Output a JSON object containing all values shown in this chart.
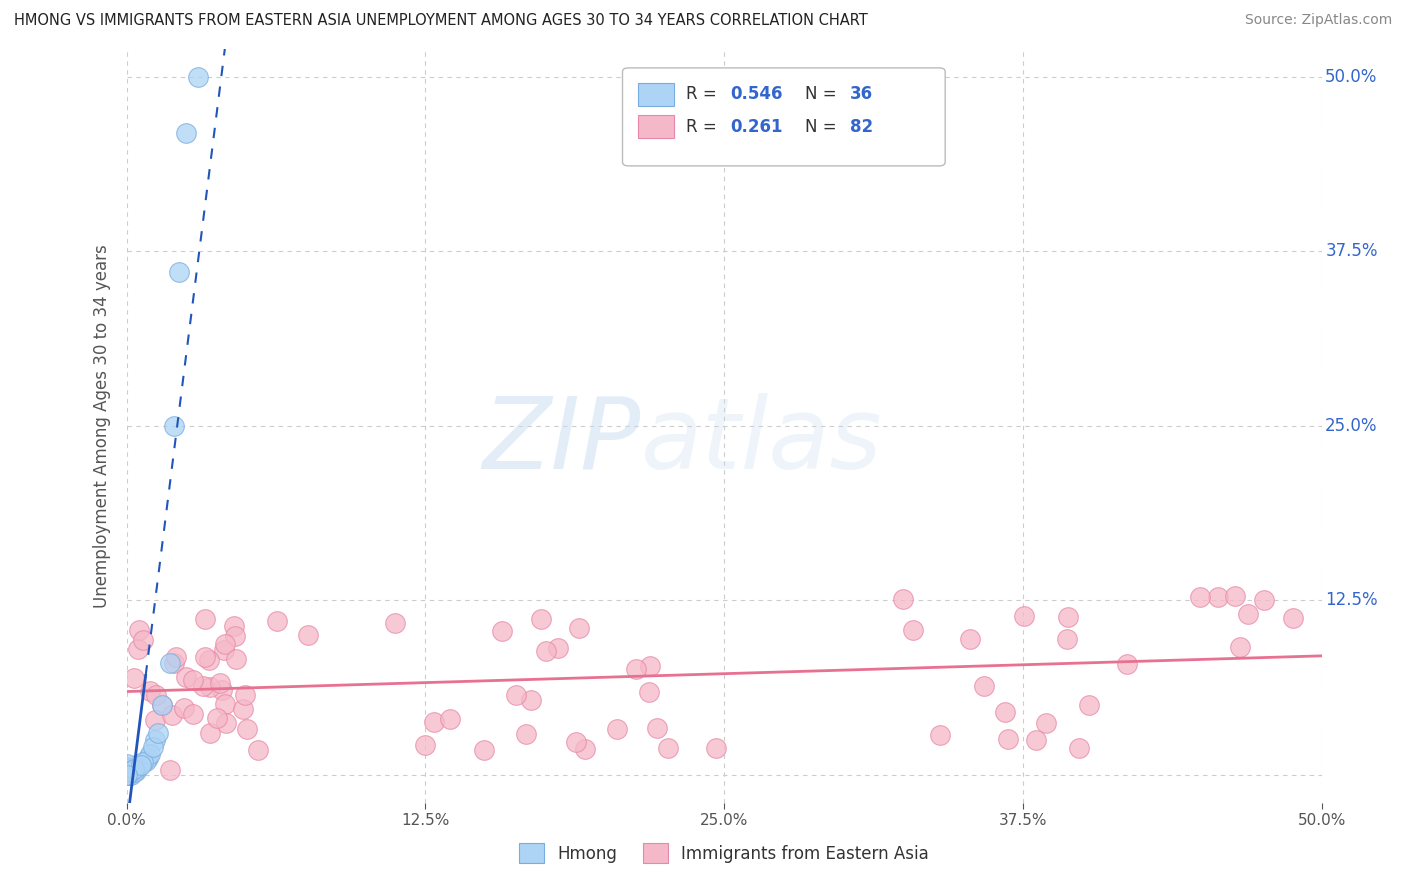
{
  "title": "HMONG VS IMMIGRANTS FROM EASTERN ASIA UNEMPLOYMENT AMONG AGES 30 TO 34 YEARS CORRELATION CHART",
  "source": "Source: ZipAtlas.com",
  "ylabel": "Unemployment Among Ages 30 to 34 years",
  "xlim": [
    0,
    0.5
  ],
  "ylim": [
    -0.02,
    0.52
  ],
  "watermark_zip": "ZIP",
  "watermark_atlas": "atlas",
  "hmong_color": "#add4f5",
  "hmong_edge_color": "#7aacdd",
  "eastern_asia_color": "#f5b8c8",
  "eastern_asia_edge_color": "#e888a8",
  "hmong_line_color": "#2255bb",
  "eastern_asia_line_color": "#e87090",
  "background_color": "#ffffff",
  "grid_color": "#cccccc",
  "title_color": "#333333",
  "label_color": "#555555",
  "legend_value_color": "#3366cc",
  "right_tick_color": "#3366cc"
}
